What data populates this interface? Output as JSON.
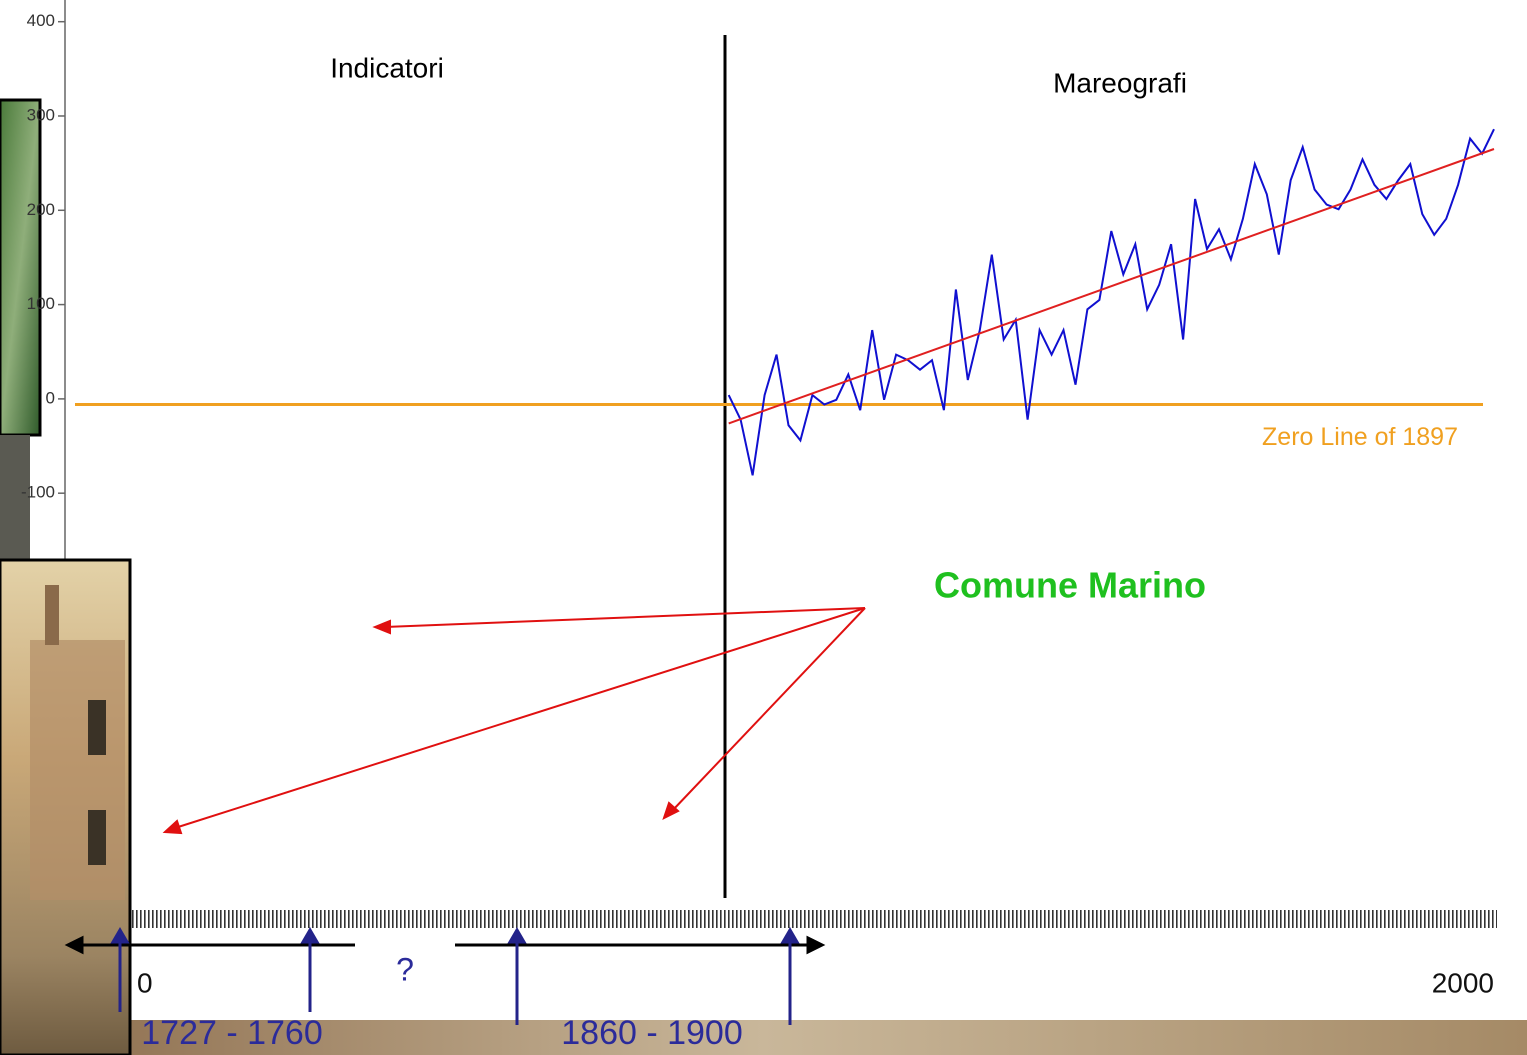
{
  "chart_data": {
    "type": "line",
    "x": [
      1872,
      1874,
      1876,
      1878,
      1880,
      1882,
      1884,
      1886,
      1888,
      1890,
      1892,
      1894,
      1896,
      1898,
      1900,
      1902,
      1904,
      1906,
      1908,
      1910,
      1912,
      1914,
      1916,
      1918,
      1920,
      1922,
      1924,
      1926,
      1928,
      1930,
      1932,
      1934,
      1936,
      1938,
      1940,
      1942,
      1944,
      1946,
      1948,
      1950,
      1952,
      1954,
      1956,
      1958,
      1960,
      1962,
      1964,
      1966,
      1968,
      1970,
      1972,
      1974,
      1976,
      1978,
      1980,
      1982,
      1984,
      1986,
      1988,
      1990,
      1992,
      1994,
      1996,
      1998,
      2000
    ],
    "series": [
      {
        "color": "#1010d0",
        "values": [
          4,
          -22,
          -81,
          4,
          47,
          -28,
          -44,
          4,
          -6,
          -1,
          26,
          -12,
          73,
          -1,
          47,
          41,
          31,
          41,
          -12,
          116,
          20,
          73,
          153,
          63,
          84,
          -22,
          73,
          47,
          73,
          15,
          95,
          105,
          178,
          132,
          164,
          95,
          121,
          164,
          63,
          212,
          159,
          180,
          148,
          191,
          249,
          217,
          153,
          232,
          267,
          222,
          206,
          201,
          222,
          254,
          227,
          212,
          232,
          249,
          196,
          174,
          191,
          227,
          276,
          260,
          286
        ]
      },
      {
        "color": "#e02020",
        "x": [
          1872,
          2000
        ],
        "values": [
          -26,
          265
        ]
      }
    ],
    "reference_line": {
      "value": -6,
      "label": "Zero Line of 1897",
      "color": "#f0a020"
    },
    "xlim": [
      1761,
      2000.5
    ],
    "ylim": [
      -542,
      423
    ],
    "yticks": [
      400,
      300,
      200,
      100,
      0,
      -100
    ],
    "xticks": [
      2000
    ],
    "x_partial_label": "0",
    "period_labels": [
      "Indicatori",
      "Mareografi"
    ],
    "annotation": "Comune Marino",
    "question": "?",
    "ranges": [
      "1727 - 1760",
      "1860 - 1900"
    ]
  }
}
